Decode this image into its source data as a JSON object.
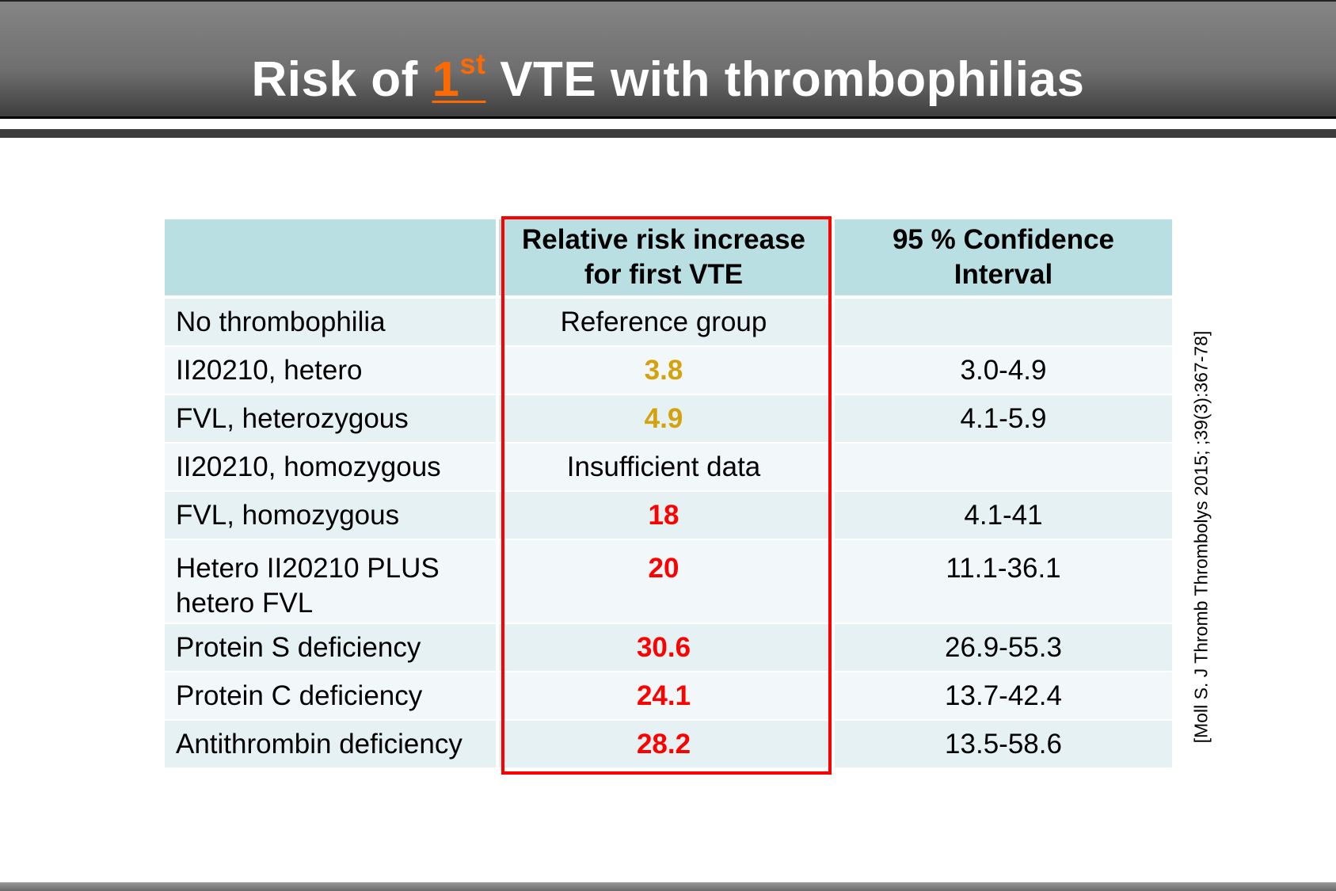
{
  "title": {
    "before": "Risk of ",
    "highlight": "1",
    "superscript": "st",
    "after": " VTE with thrombophilias"
  },
  "colors": {
    "header_bg": "#6f6f6f",
    "highlight": "#ff6a00",
    "table_header": "#b9dfe3",
    "moderate": "#d4a20c",
    "high": "#ff0000",
    "box": "#ff0000"
  },
  "table": {
    "headers": [
      "",
      "Relative risk increase for first VTE",
      "95 % Confidence Interval"
    ],
    "rows": [
      {
        "label": "No thrombophilia",
        "risk": "Reference group",
        "ci": ""
      },
      {
        "label": "II20210, hetero",
        "risk": "3.8",
        "ci": "3.0-4.9"
      },
      {
        "label": "FVL, heterozygous",
        "risk": "4.9",
        "ci": "4.1-5.9"
      },
      {
        "label": "II20210, homozygous",
        "risk": "Insufficient data",
        "ci": ""
      },
      {
        "label": "FVL, homozygous",
        "risk": "18",
        "ci": "4.1-41"
      },
      {
        "label": "Hetero II20210 PLUS hetero FVL",
        "risk": "20",
        "ci": "11.1-36.1"
      },
      {
        "label": "Protein S deficiency",
        "risk": "30.6",
        "ci": "26.9-55.3"
      },
      {
        "label": "Protein C deficiency",
        "risk": "24.1",
        "ci": "13.7-42.4"
      },
      {
        "label": "Antithrombin deficiency",
        "risk": "28.2",
        "ci": "13.5-58.6"
      }
    ]
  },
  "citation": "[Moll S. J Thromb Thrombolys 2015; ;39(3):367-78]"
}
